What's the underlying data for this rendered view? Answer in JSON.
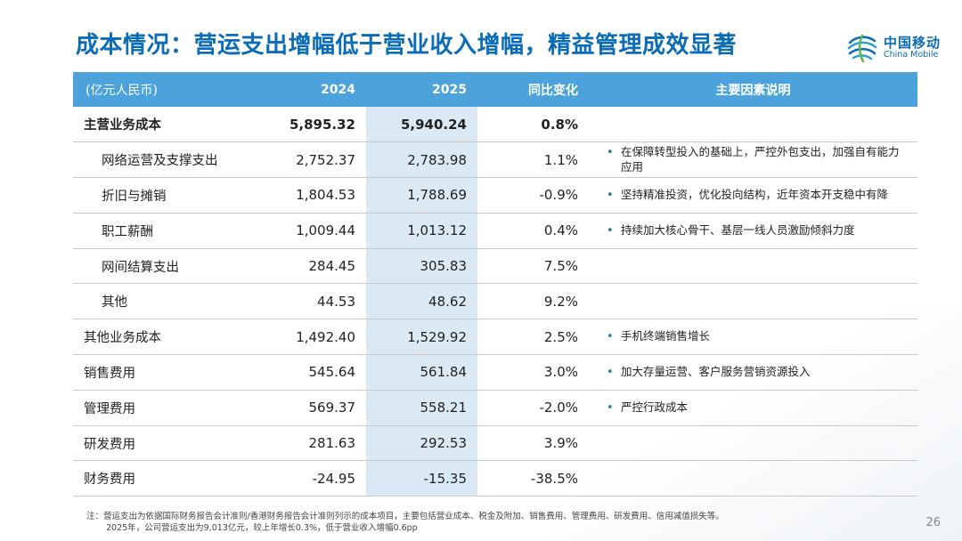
{
  "title": "成本情况：营运支出增幅低于营业收入增幅，精益管理成效显著",
  "logo": {
    "cn": "中国移动",
    "en": "China Mobile"
  },
  "colors": {
    "title": "#0a6bb6",
    "header_bg": "#4ca3dc",
    "highlight_col": "#dbe9f5",
    "bullet": "#1b8a8a"
  },
  "table": {
    "headers": [
      "(亿元人民币)",
      "2024",
      "2025",
      "同比变化",
      "主要因素说明"
    ],
    "rows": [
      {
        "label": "主营业务成本",
        "v2024": "5,895.32",
        "v2025": "5,940.24",
        "change": "0.8%",
        "note": ""
      },
      {
        "label": "网络运营及支撑支出",
        "v2024": "2,752.37",
        "v2025": "2,783.98",
        "change": "1.1%",
        "note": "在保障转型投入的基础上，严控外包支出，加强自有能力应用"
      },
      {
        "label": "折旧与摊销",
        "v2024": "1,804.53",
        "v2025": "1,788.69",
        "change": "-0.9%",
        "note": "坚持精准投资，优化投向结构，近年资本开支稳中有降"
      },
      {
        "label": "职工薪酬",
        "v2024": "1,009.44",
        "v2025": "1,013.12",
        "change": "0.4%",
        "note": "持续加大核心骨干、基层一线人员激励倾斜力度"
      },
      {
        "label": "网间结算支出",
        "v2024": "284.45",
        "v2025": "305.83",
        "change": "7.5%",
        "note": ""
      },
      {
        "label": "其他",
        "v2024": "44.53",
        "v2025": "48.62",
        "change": "9.2%",
        "note": ""
      },
      {
        "label": "其他业务成本",
        "v2024": "1,492.40",
        "v2025": "1,529.92",
        "change": "2.5%",
        "note": "手机终端销售增长"
      },
      {
        "label": "销售费用",
        "v2024": "545.64",
        "v2025": "561.84",
        "change": "3.0%",
        "note": "加大存量运营、客户服务营销资源投入"
      },
      {
        "label": "管理费用",
        "v2024": "569.37",
        "v2025": "558.21",
        "change": "-2.0%",
        "note": "严控行政成本"
      },
      {
        "label": "研发费用",
        "v2024": "281.63",
        "v2025": "292.53",
        "change": "3.9%",
        "note": ""
      },
      {
        "label": "财务费用",
        "v2024": "-24.95",
        "v2025": "-15.35",
        "change": "-38.5%",
        "note": ""
      }
    ]
  },
  "footnote": {
    "line1": "注：营运支出为依据国际财务报告会计准则/香港财务报告会计准则列示的成本项目，主要包括营业成本、税金及附加、销售费用、管理费用、研发费用、信用减值损失等。",
    "line2": "2025年，公司营运支出为9,013亿元，较上年增长0.3%，低于营业收入增幅0.6pp"
  },
  "page_number": "26"
}
